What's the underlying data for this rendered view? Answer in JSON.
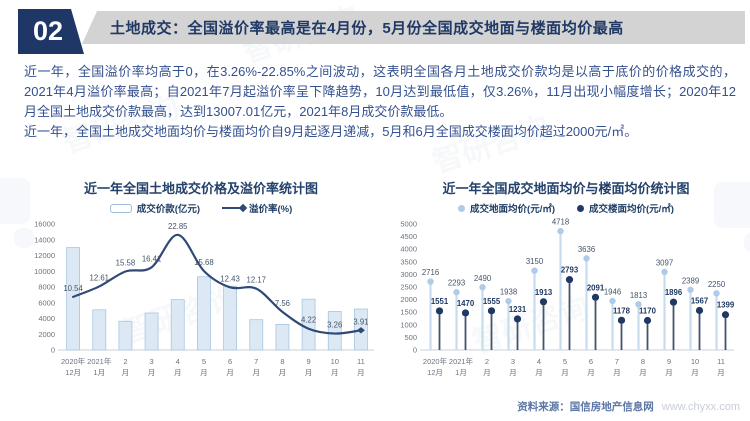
{
  "header": {
    "number": "02",
    "title": "土地成交：全国溢价率最高是在4月份，5月份全国成交地面与楼面均价最高"
  },
  "paragraphs": [
    "近一年，全国溢价率均高于0，在3.26%-22.85%之间波动，这表明全国各月土地成交价款均是以高于底价的价格成交的，2021年4月溢价率最高；自2021年7月起溢价率呈下降趋势，10月达到最低值，仅3.26%，11月出现小幅度增长；2020年12月全国土地成交价款最高，达到13007.01亿元，2021年8月成交价款最低。",
    "近一年，全国土地成交地面均价与楼面均价自9月起逐月递减，5月和6月全国成交楼面均价超过2000元/㎡。"
  ],
  "watermark": {
    "text": "智研咨询"
  },
  "footer": {
    "source": "资料来源：国信房地产信息网",
    "site": "www.chyxx.com"
  },
  "colors": {
    "header_navy": "#1e3766",
    "header_gray": "#d3d3d3",
    "body_text": "#33508f",
    "bar_fill": "#dce9f5",
    "bar_stroke": "#a9c6e0",
    "line": "#304a78",
    "tick_text": "#6a7280",
    "label_text": "#44546a",
    "light_stem": "#c7dbee",
    "light_dot": "#aecbe8",
    "dark_stem": "#44546a",
    "dark_dot": "#1f3864",
    "axis_line": "#c9d2de"
  },
  "chart_data": [
    {
      "type": "bar",
      "title": "近一年全国土地成交价格及溢价率统计图",
      "categories": [
        [
          "2020年",
          "12月"
        ],
        [
          "2021年",
          "1月"
        ],
        [
          "2",
          "月"
        ],
        [
          "3",
          "月"
        ],
        [
          "4",
          "月"
        ],
        [
          "5",
          "月"
        ],
        [
          "6",
          "月"
        ],
        [
          "7",
          "月"
        ],
        [
          "8",
          "月"
        ],
        [
          "9",
          "月"
        ],
        [
          "10",
          "月"
        ],
        [
          "11",
          "月"
        ]
      ],
      "series": [
        {
          "name": "成交价款(亿元)",
          "type": "bar",
          "axis": "left",
          "values": [
            13007,
            5100,
            3650,
            4700,
            6400,
            9300,
            8100,
            3850,
            3250,
            6450,
            4900,
            5200
          ]
        },
        {
          "name": "溢价率(%)",
          "type": "line",
          "axis": "right",
          "values": [
            10.54,
            12.61,
            15.58,
            16.41,
            22.85,
            15.68,
            12.43,
            12.17,
            7.56,
            4.22,
            3.26,
            3.91
          ]
        }
      ],
      "left_axis": {
        "range": [
          0,
          16000
        ],
        "tick_step": 2000
      },
      "right_axis": {
        "range": [
          0,
          25
        ],
        "ticks_shown": false
      },
      "grid": false,
      "legend_position": "top",
      "notes": "bar values estimated from pixels except Dec-2020 = 13007.01 stated in text; line values are data labels shown on chart"
    },
    {
      "type": "scatter",
      "subtype": "lollipop",
      "title": "近一年全国成交地面均价与楼面均价统计图",
      "categories": [
        [
          "2020年",
          "12月"
        ],
        [
          "2021年",
          "1月"
        ],
        [
          "2",
          "月"
        ],
        [
          "3",
          "月"
        ],
        [
          "4",
          "月"
        ],
        [
          "5",
          "月"
        ],
        [
          "6",
          "月"
        ],
        [
          "7",
          "月"
        ],
        [
          "8",
          "月"
        ],
        [
          "9",
          "月"
        ],
        [
          "10",
          "月"
        ],
        [
          "11",
          "月"
        ]
      ],
      "series": [
        {
          "name": "成交地面均价(元/㎡)",
          "values": [
            2716,
            2293,
            2490,
            1938,
            3150,
            4718,
            3636,
            1946,
            1813,
            3097,
            2389,
            2250
          ]
        },
        {
          "name": "成交楼面均价(元/㎡)",
          "values": [
            1551,
            1470,
            1555,
            1231,
            1913,
            2793,
            2091,
            1178,
            1170,
            1896,
            1567,
            1399
          ]
        }
      ],
      "left_axis": {
        "range": [
          0,
          5000
        ],
        "tick_step": 500
      },
      "grid": false,
      "legend_position": "top"
    }
  ]
}
